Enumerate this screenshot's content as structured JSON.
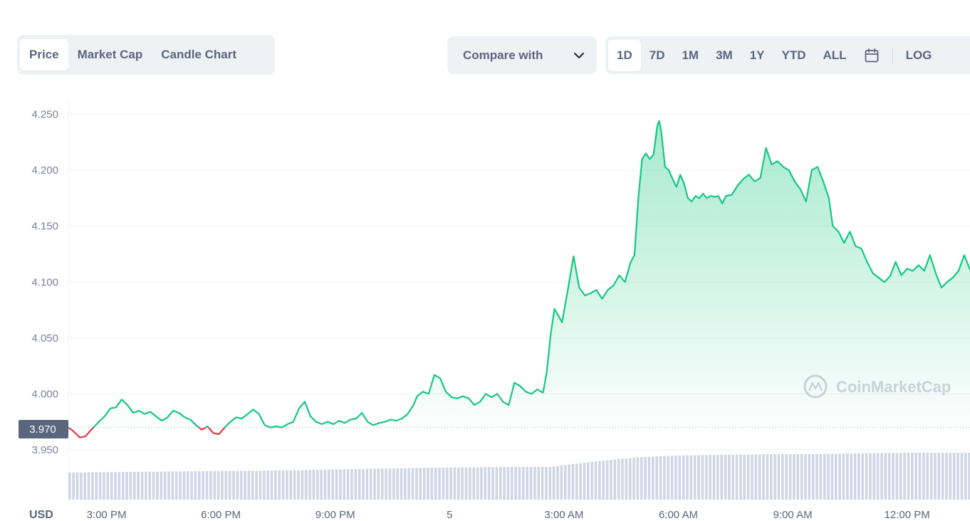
{
  "tabs": {
    "chart_types": [
      "Price",
      "Market Cap",
      "Candle Chart"
    ],
    "active_type": "Price",
    "compare_label": "Compare with",
    "ranges": [
      "1D",
      "7D",
      "1M",
      "3M",
      "1Y",
      "YTD",
      "ALL"
    ],
    "active_range": "1D",
    "log_label": "LOG"
  },
  "watermark": "CoinMarketCap",
  "currency_label": "USD",
  "chart_data": {
    "type": "area",
    "title": "",
    "xlabel": "",
    "ylabel": "",
    "x_unit": "hours since 2:00 PM",
    "x_ticks": [
      {
        "x": 1,
        "label": "3:00 PM"
      },
      {
        "x": 4,
        "label": "6:00 PM"
      },
      {
        "x": 7,
        "label": "9:00 PM"
      },
      {
        "x": 10,
        "label": "5"
      },
      {
        "x": 13,
        "label": "3:00 AM"
      },
      {
        "x": 16,
        "label": "6:00 AM"
      },
      {
        "x": 19,
        "label": "9:00 AM"
      },
      {
        "x": 22,
        "label": "12:00 PM"
      }
    ],
    "y_ticks": [
      "4.250",
      "4.200",
      "4.150",
      "4.100",
      "4.050",
      "4.000",
      "3.950"
    ],
    "ylim": [
      3.915,
      4.26
    ],
    "xlim": [
      0.0,
      23.65
    ],
    "reference_price": 3.97,
    "reference_label": "3.970",
    "grid": true,
    "line_color_up": "#16c784",
    "line_color_down": "#ea3943",
    "price": [
      [
        0.0,
        3.97
      ],
      [
        0.12,
        3.967
      ],
      [
        0.3,
        3.961
      ],
      [
        0.45,
        3.962
      ],
      [
        0.6,
        3.968
      ],
      [
        0.8,
        3.975
      ],
      [
        0.95,
        3.98
      ],
      [
        1.1,
        3.987
      ],
      [
        1.25,
        3.988
      ],
      [
        1.4,
        3.995
      ],
      [
        1.55,
        3.99
      ],
      [
        1.7,
        3.983
      ],
      [
        1.85,
        3.985
      ],
      [
        2.0,
        3.982
      ],
      [
        2.15,
        3.984
      ],
      [
        2.3,
        3.98
      ],
      [
        2.45,
        3.976
      ],
      [
        2.6,
        3.979
      ],
      [
        2.75,
        3.985
      ],
      [
        2.9,
        3.983
      ],
      [
        3.05,
        3.979
      ],
      [
        3.2,
        3.977
      ],
      [
        3.35,
        3.972
      ],
      [
        3.5,
        3.968
      ],
      [
        3.65,
        3.971
      ],
      [
        3.8,
        3.965
      ],
      [
        3.95,
        3.964
      ],
      [
        4.1,
        3.97
      ],
      [
        4.25,
        3.975
      ],
      [
        4.4,
        3.979
      ],
      [
        4.55,
        3.978
      ],
      [
        4.7,
        3.982
      ],
      [
        4.85,
        3.986
      ],
      [
        5.0,
        3.982
      ],
      [
        5.15,
        3.972
      ],
      [
        5.3,
        3.97
      ],
      [
        5.45,
        3.971
      ],
      [
        5.6,
        3.97
      ],
      [
        5.75,
        3.973
      ],
      [
        5.9,
        3.975
      ],
      [
        6.05,
        3.987
      ],
      [
        6.2,
        3.993
      ],
      [
        6.35,
        3.98
      ],
      [
        6.5,
        3.975
      ],
      [
        6.65,
        3.973
      ],
      [
        6.8,
        3.975
      ],
      [
        6.95,
        3.973
      ],
      [
        7.1,
        3.976
      ],
      [
        7.25,
        3.974
      ],
      [
        7.4,
        3.977
      ],
      [
        7.55,
        3.978
      ],
      [
        7.7,
        3.983
      ],
      [
        7.85,
        3.975
      ],
      [
        8.0,
        3.972
      ],
      [
        8.15,
        3.974
      ],
      [
        8.3,
        3.975
      ],
      [
        8.45,
        3.977
      ],
      [
        8.6,
        3.976
      ],
      [
        8.75,
        3.978
      ],
      [
        8.9,
        3.982
      ],
      [
        9.05,
        3.99
      ],
      [
        9.15,
        3.998
      ],
      [
        9.3,
        4.002
      ],
      [
        9.45,
        4.0
      ],
      [
        9.6,
        4.017
      ],
      [
        9.75,
        4.014
      ],
      [
        9.9,
        4.002
      ],
      [
        10.05,
        3.997
      ],
      [
        10.2,
        3.996
      ],
      [
        10.35,
        3.998
      ],
      [
        10.5,
        3.996
      ],
      [
        10.65,
        3.99
      ],
      [
        10.8,
        3.993
      ],
      [
        10.95,
        4.0
      ],
      [
        11.1,
        3.997
      ],
      [
        11.25,
        4.0
      ],
      [
        11.4,
        3.993
      ],
      [
        11.55,
        3.99
      ],
      [
        11.7,
        4.01
      ],
      [
        11.85,
        4.007
      ],
      [
        12.0,
        4.002
      ],
      [
        12.15,
        4.0
      ],
      [
        12.3,
        4.004
      ],
      [
        12.45,
        4.001
      ],
      [
        12.55,
        4.02
      ],
      [
        12.65,
        4.053
      ],
      [
        12.75,
        4.076
      ],
      [
        12.85,
        4.07
      ],
      [
        12.95,
        4.064
      ],
      [
        13.1,
        4.093
      ],
      [
        13.25,
        4.123
      ],
      [
        13.4,
        4.095
      ],
      [
        13.55,
        4.088
      ],
      [
        13.7,
        4.09
      ],
      [
        13.85,
        4.093
      ],
      [
        14.0,
        4.085
      ],
      [
        14.15,
        4.093
      ],
      [
        14.3,
        4.097
      ],
      [
        14.45,
        4.106
      ],
      [
        14.6,
        4.1
      ],
      [
        14.75,
        4.118
      ],
      [
        14.85,
        4.124
      ],
      [
        14.95,
        4.175
      ],
      [
        15.05,
        4.21
      ],
      [
        15.15,
        4.215
      ],
      [
        15.25,
        4.21
      ],
      [
        15.35,
        4.214
      ],
      [
        15.45,
        4.24
      ],
      [
        15.5,
        4.244
      ],
      [
        15.55,
        4.235
      ],
      [
        15.65,
        4.203
      ],
      [
        15.75,
        4.2
      ],
      [
        15.85,
        4.192
      ],
      [
        15.95,
        4.185
      ],
      [
        16.05,
        4.196
      ],
      [
        16.15,
        4.188
      ],
      [
        16.25,
        4.175
      ],
      [
        16.35,
        4.172
      ],
      [
        16.45,
        4.177
      ],
      [
        16.55,
        4.175
      ],
      [
        16.65,
        4.179
      ],
      [
        16.75,
        4.175
      ],
      [
        16.85,
        4.177
      ],
      [
        16.95,
        4.176
      ],
      [
        17.05,
        4.177
      ],
      [
        17.15,
        4.17
      ],
      [
        17.25,
        4.177
      ],
      [
        17.4,
        4.178
      ],
      [
        17.55,
        4.186
      ],
      [
        17.7,
        4.192
      ],
      [
        17.85,
        4.196
      ],
      [
        18.0,
        4.19
      ],
      [
        18.15,
        4.193
      ],
      [
        18.3,
        4.22
      ],
      [
        18.45,
        4.205
      ],
      [
        18.6,
        4.208
      ],
      [
        18.75,
        4.203
      ],
      [
        18.9,
        4.2
      ],
      [
        19.05,
        4.19
      ],
      [
        19.2,
        4.183
      ],
      [
        19.35,
        4.172
      ],
      [
        19.5,
        4.2
      ],
      [
        19.65,
        4.203
      ],
      [
        19.8,
        4.19
      ],
      [
        19.95,
        4.175
      ],
      [
        20.05,
        4.15
      ],
      [
        20.2,
        4.145
      ],
      [
        20.35,
        4.135
      ],
      [
        20.5,
        4.145
      ],
      [
        20.65,
        4.132
      ],
      [
        20.8,
        4.13
      ],
      [
        20.95,
        4.118
      ],
      [
        21.1,
        4.108
      ],
      [
        21.25,
        4.104
      ],
      [
        21.4,
        4.1
      ],
      [
        21.55,
        4.105
      ],
      [
        21.7,
        4.118
      ],
      [
        21.85,
        4.106
      ],
      [
        22.0,
        4.112
      ],
      [
        22.15,
        4.11
      ],
      [
        22.3,
        4.115
      ],
      [
        22.45,
        4.11
      ],
      [
        22.6,
        4.124
      ],
      [
        22.75,
        4.108
      ],
      [
        22.9,
        4.095
      ],
      [
        23.05,
        4.1
      ],
      [
        23.2,
        4.104
      ],
      [
        23.35,
        4.11
      ],
      [
        23.5,
        4.124
      ],
      [
        23.65,
        4.111
      ]
    ],
    "volume": [
      [
        0.0,
        0.38
      ],
      [
        1.5,
        0.39
      ],
      [
        3.5,
        0.4
      ],
      [
        5.5,
        0.41
      ],
      [
        7.5,
        0.43
      ],
      [
        9.5,
        0.45
      ],
      [
        11.5,
        0.46
      ],
      [
        12.6,
        0.46
      ],
      [
        13.2,
        0.5
      ],
      [
        14.0,
        0.55
      ],
      [
        15.0,
        0.6
      ],
      [
        16.0,
        0.62
      ],
      [
        17.0,
        0.63
      ],
      [
        18.5,
        0.64
      ],
      [
        19.5,
        0.64
      ],
      [
        20.5,
        0.65
      ],
      [
        22.0,
        0.66
      ],
      [
        23.65,
        0.66
      ]
    ]
  }
}
